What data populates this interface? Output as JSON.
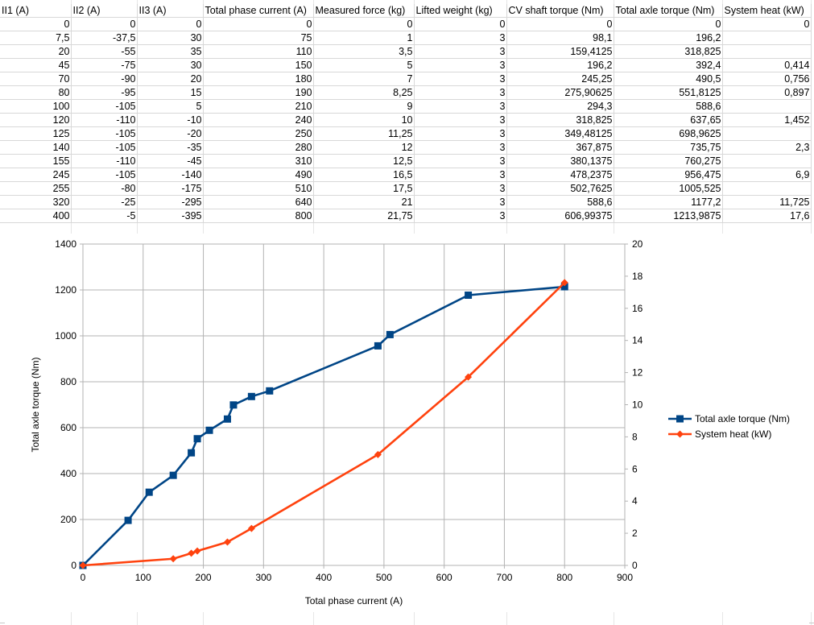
{
  "table": {
    "headers": [
      "II1 (A)",
      "II2 (A)",
      "II3 (A)",
      "Total phase current (A)",
      "Measured force (kg)",
      "Lifted weight (kg)",
      "CV shaft torque (Nm)",
      "Total axle torque (Nm)",
      "System heat (kW)"
    ],
    "rows": [
      [
        "0",
        "0",
        "0",
        "0",
        "0",
        "0",
        "0",
        "0",
        "0"
      ],
      [
        "7,5",
        "-37,5",
        "30",
        "75",
        "1",
        "3",
        "98,1",
        "196,2",
        ""
      ],
      [
        "20",
        "-55",
        "35",
        "110",
        "3,5",
        "3",
        "159,4125",
        "318,825",
        ""
      ],
      [
        "45",
        "-75",
        "30",
        "150",
        "5",
        "3",
        "196,2",
        "392,4",
        "0,414"
      ],
      [
        "70",
        "-90",
        "20",
        "180",
        "7",
        "3",
        "245,25",
        "490,5",
        "0,756"
      ],
      [
        "80",
        "-95",
        "15",
        "190",
        "8,25",
        "3",
        "275,90625",
        "551,8125",
        "0,897"
      ],
      [
        "100",
        "-105",
        "5",
        "210",
        "9",
        "3",
        "294,3",
        "588,6",
        ""
      ],
      [
        "120",
        "-110",
        "-10",
        "240",
        "10",
        "3",
        "318,825",
        "637,65",
        "1,452"
      ],
      [
        "125",
        "-105",
        "-20",
        "250",
        "11,25",
        "3",
        "349,48125",
        "698,9625",
        ""
      ],
      [
        "140",
        "-105",
        "-35",
        "280",
        "12",
        "3",
        "367,875",
        "735,75",
        "2,3"
      ],
      [
        "155",
        "-110",
        "-45",
        "310",
        "12,5",
        "3",
        "380,1375",
        "760,275",
        ""
      ],
      [
        "245",
        "-105",
        "-140",
        "490",
        "16,5",
        "3",
        "478,2375",
        "956,475",
        "6,9"
      ],
      [
        "255",
        "-80",
        "-175",
        "510",
        "17,5",
        "3",
        "502,7625",
        "1005,525",
        ""
      ],
      [
        "320",
        "-25",
        "-295",
        "640",
        "21",
        "3",
        "588,6",
        "1177,2",
        "11,725"
      ],
      [
        "400",
        "-5",
        "-395",
        "800",
        "21,75",
        "3",
        "606,99375",
        "1213,9875",
        "17,6"
      ]
    ]
  },
  "chart_data": {
    "type": "scatter",
    "title": "",
    "xlabel": "Total phase current (A)",
    "ylabel": "Total axle torque (Nm)",
    "xlim": [
      0,
      900
    ],
    "ylim": [
      0,
      1400
    ],
    "y2lim": [
      0,
      20
    ],
    "x_ticks": [
      "0",
      "100",
      "200",
      "300",
      "400",
      "500",
      "600",
      "700",
      "800",
      "900"
    ],
    "y_ticks": [
      "0",
      "200",
      "400",
      "600",
      "800",
      "1000",
      "1200",
      "1400"
    ],
    "y2_ticks": [
      "0",
      "2",
      "4",
      "6",
      "8",
      "10",
      "12",
      "14",
      "16",
      "18",
      "20"
    ],
    "grid": true,
    "legend_position": "right",
    "series": [
      {
        "name": "Total axle torque (Nm)",
        "axis": "left",
        "color": "#004586",
        "marker": "square",
        "x": [
          0,
          75,
          110,
          150,
          180,
          190,
          210,
          240,
          250,
          280,
          310,
          490,
          510,
          640,
          800
        ],
        "y": [
          0,
          196.2,
          318.825,
          392.4,
          490.5,
          551.8125,
          588.6,
          637.65,
          698.9625,
          735.75,
          760.275,
          956.475,
          1005.525,
          1177.2,
          1213.9875
        ]
      },
      {
        "name": "System heat (kW)",
        "axis": "right",
        "color": "#ff420e",
        "marker": "diamond",
        "x": [
          0,
          150,
          180,
          190,
          240,
          280,
          490,
          640,
          800
        ],
        "y": [
          0,
          0.414,
          0.756,
          0.897,
          1.452,
          2.3,
          6.9,
          11.725,
          17.6
        ]
      }
    ]
  }
}
